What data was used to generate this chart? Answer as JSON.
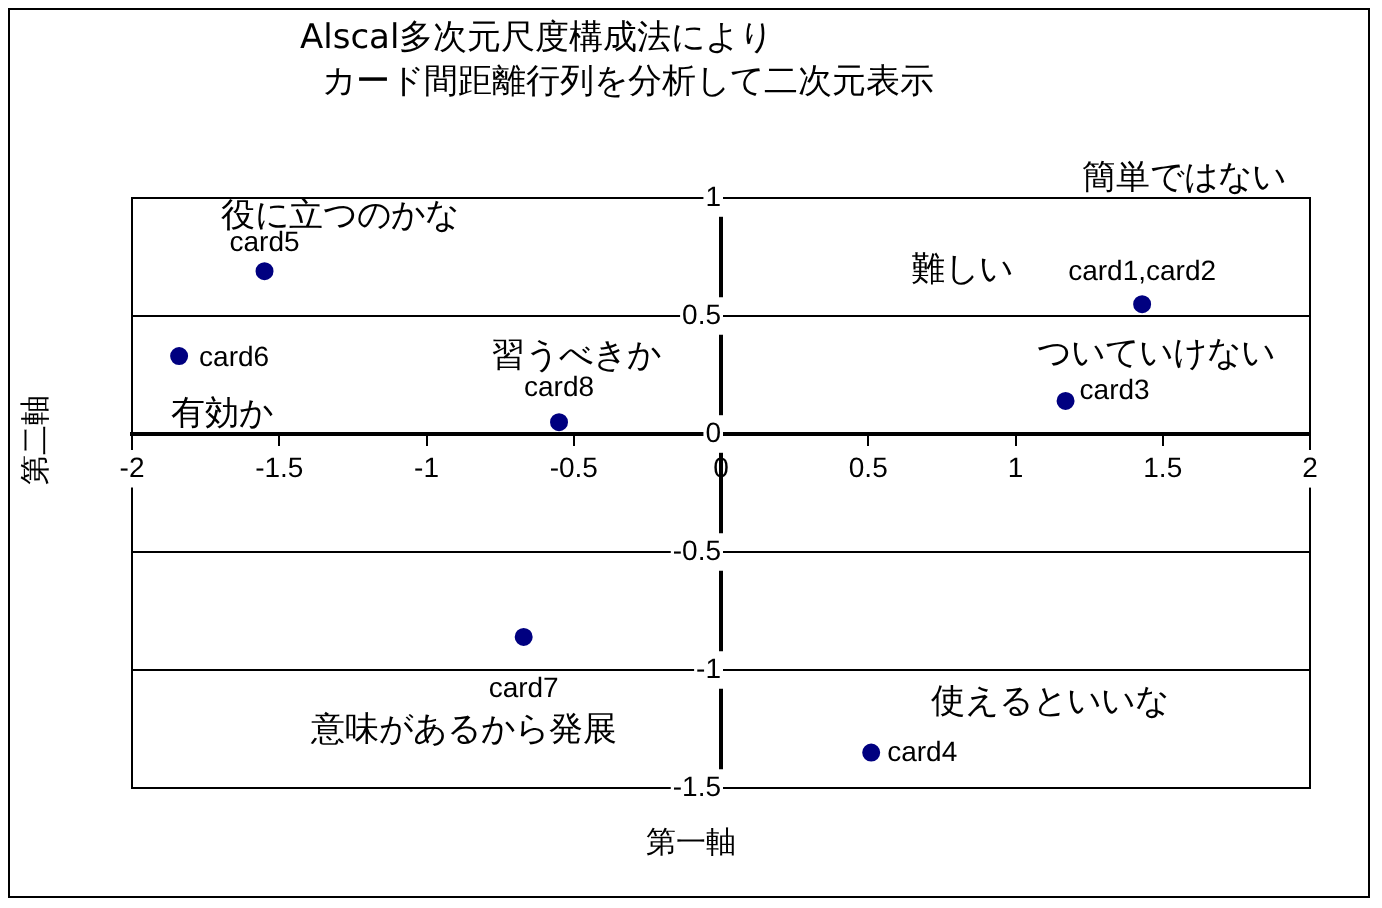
{
  "chart_data": {
    "type": "scatter",
    "title": "Alscal多次元尺度構成法により",
    "subtitle": "カード間距離行列を分析して二次元表示",
    "xlabel": "第一軸",
    "ylabel": "第二軸",
    "x": [
      -1.55,
      -1.84,
      -0.55,
      1.43,
      1.17,
      -0.67,
      0.51
    ],
    "series": [
      {
        "color": "#000080",
        "values": [
          0.69,
          0.33,
          0.05,
          0.55,
          0.14,
          -0.86,
          -1.35
        ]
      }
    ],
    "xlim": [
      -2,
      2
    ],
    "xticks": [
      -2,
      -1.5,
      -1,
      -0.5,
      0,
      0.5,
      1,
      1.5,
      2
    ],
    "ylim": [
      -1.5,
      1
    ],
    "yticks": [
      -1.5,
      -1,
      -0.5,
      0,
      0.5,
      1
    ],
    "grid": "y",
    "legend": false,
    "marker": "circle",
    "annotations": [
      {
        "text": "card5",
        "x": -1.55,
        "y": 0.69
      },
      {
        "text": "card6",
        "x": -1.84,
        "y": 0.33
      },
      {
        "text": "card8",
        "x": -0.55,
        "y": 0.05
      },
      {
        "text": "card1,card2",
        "x": 1.43,
        "y": 0.55
      },
      {
        "text": "card3",
        "x": 1.17,
        "y": 0.14
      },
      {
        "text": "card7",
        "x": -0.67,
        "y": -0.86
      },
      {
        "text": "card4",
        "x": 0.51,
        "y": -1.35
      },
      "役に立つのかな",
      "有効か",
      "習うべきか",
      "難しい",
      "簡単ではない",
      "ついていけない",
      "意味があるから発展",
      "使えるといいな"
    ]
  }
}
